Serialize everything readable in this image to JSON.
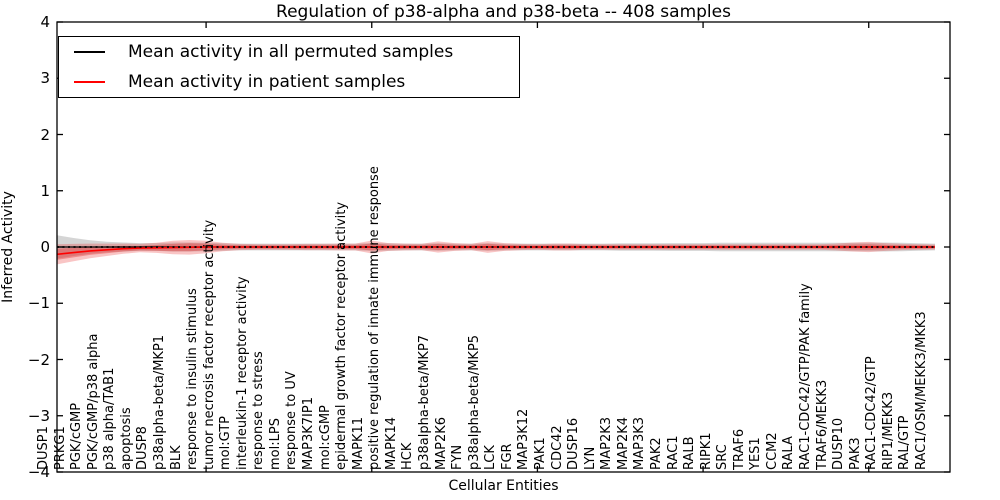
{
  "title": "Regulation of p38-alpha and p38-beta -- 408 samples",
  "legend": {
    "items": [
      {
        "label": "Mean activity in all permuted samples",
        "color": "#000000"
      },
      {
        "label": "Mean activity in patient samples",
        "color": "#ff0000"
      }
    ]
  },
  "chart_data": {
    "type": "line",
    "title": "Regulation of p38-alpha and p38-beta -- 408 samples",
    "xlabel": "Cellular Entities",
    "ylabel": "Inferred Activity",
    "ylim": [
      -4,
      4
    ],
    "yticks": [
      4,
      3,
      2,
      1,
      0,
      -1,
      -2,
      -3,
      -4
    ],
    "xtick_mark_values": [
      10,
      20,
      30,
      40,
      50
    ],
    "grid": false,
    "legend_position": "upper left",
    "categories": [
      "DUSP1",
      "PRKG1",
      "PGK/cGMP",
      "PGK/cGMP/p38 alpha",
      "p38 alpha/TAB1",
      "apoptosis",
      "DUSP8",
      "p38alpha-beta/MKP1",
      "BLK",
      "response to insulin stimulus",
      "tumor necrosis factor receptor activity",
      "mol:GTP",
      "interleukin-1 receptor activity",
      "response to stress",
      "mol:LPS",
      "response to UV",
      "MAP3K7IP1",
      "mol:cGMP",
      "epidermal growth factor receptor activity",
      "MAPK11",
      "positive regulation of innate immune response",
      "MAPK14",
      "HCK",
      "p38alpha-beta/MKP7",
      "MAP2K6",
      "FYN",
      "p38alpha-beta/MKP5",
      "LCK",
      "FGR",
      "MAP3K12",
      "PAK1",
      "CDC42",
      "DUSP16",
      "LYN",
      "MAP2K3",
      "MAP2K4",
      "MAP3K3",
      "PAK2",
      "RAC1",
      "RALB",
      "RIPK1",
      "SRC",
      "TRAF6",
      "YES1",
      "CCM2",
      "RALA",
      "RAC1-CDC42/GTP/PAK family",
      "TRAF6/MEKK3",
      "DUSP10",
      "PAK3",
      "RAC1-CDC42/GTP",
      "RIP1/MEKK3",
      "RAL/GTP",
      "RAC1/OSM/MEKK3/MKK3"
    ],
    "series": [
      {
        "name": "Mean activity in all permuted samples",
        "color": "#000000",
        "style": "solid-with-dotted-overlay",
        "values": [
          0,
          0,
          0,
          0,
          0,
          0,
          0,
          0,
          0,
          0,
          0,
          0,
          0,
          0,
          0,
          0,
          0,
          0,
          0,
          0,
          0,
          0,
          0,
          0,
          0,
          0,
          0,
          0,
          0,
          0,
          0,
          0,
          0,
          0,
          0,
          0,
          0,
          0,
          0,
          0,
          0,
          0,
          0,
          0,
          0,
          0,
          0,
          0,
          0,
          0,
          0,
          0,
          0,
          0
        ]
      },
      {
        "name": "Mean activity in patient samples",
        "color": "#ff0000",
        "style": "solid",
        "values": [
          -0.13,
          -0.1,
          -0.07,
          -0.05,
          -0.03,
          -0.02,
          -0.015,
          -0.01,
          -0.005,
          0,
          0,
          0,
          0,
          0,
          0,
          0,
          0,
          0,
          0,
          0,
          0,
          0,
          0,
          0,
          0,
          0,
          0,
          0,
          0,
          0,
          0,
          0,
          0,
          0,
          0,
          0,
          0,
          0,
          0,
          0,
          0,
          0,
          0,
          0,
          0,
          0,
          0,
          0,
          0,
          0,
          0,
          0,
          0,
          0
        ]
      }
    ],
    "bands": [
      {
        "name": "permuted-samples-spread",
        "center": "permuted",
        "color": "#888888",
        "opacity": 0.35,
        "half_widths": [
          0.21,
          0.16,
          0.12,
          0.095,
          0.08,
          0.07,
          0.07,
          0.08,
          0.08,
          0.075,
          0.065,
          0.06,
          0.06,
          0.06,
          0.06,
          0.06,
          0.06,
          0.06,
          0.06,
          0.07,
          0.065,
          0.06,
          0.06,
          0.065,
          0.06,
          0.06,
          0.065,
          0.06,
          0.06,
          0.06,
          0.06,
          0.06,
          0.06,
          0.06,
          0.065,
          0.065,
          0.065,
          0.07,
          0.07,
          0.07,
          0.075,
          0.075,
          0.075,
          0.075,
          0.075,
          0.075,
          0.075,
          0.075,
          0.075,
          0.075,
          0.08,
          0.075,
          0.065,
          0.06
        ]
      },
      {
        "name": "patient-samples-spread-outer",
        "center": "patient",
        "color": "#e83030",
        "opacity": 0.28,
        "half_widths": [
          0.18,
          0.155,
          0.13,
          0.11,
          0.09,
          0.075,
          0.09,
          0.12,
          0.13,
          0.11,
          0.075,
          0.055,
          0.05,
          0.05,
          0.05,
          0.055,
          0.055,
          0.06,
          0.06,
          0.115,
          0.07,
          0.06,
          0.055,
          0.1,
          0.07,
          0.055,
          0.105,
          0.07,
          0.055,
          0.05,
          0.06,
          0.06,
          0.05,
          0.05,
          0.05,
          0.05,
          0.05,
          0.05,
          0.05,
          0.05,
          0.05,
          0.05,
          0.05,
          0.05,
          0.05,
          0.05,
          0.05,
          0.06,
          0.08,
          0.09,
          0.07,
          0.055,
          0.05,
          0.045
        ]
      },
      {
        "name": "patient-samples-spread-inner",
        "center": "patient",
        "color": "#e02020",
        "opacity": 0.35,
        "half_widths": [
          0.1,
          0.085,
          0.07,
          0.06,
          0.05,
          0.04,
          0.05,
          0.065,
          0.07,
          0.06,
          0.04,
          0.03,
          0.028,
          0.028,
          0.028,
          0.03,
          0.03,
          0.033,
          0.033,
          0.063,
          0.038,
          0.033,
          0.03,
          0.055,
          0.038,
          0.03,
          0.058,
          0.038,
          0.03,
          0.028,
          0.033,
          0.033,
          0.028,
          0.028,
          0.028,
          0.028,
          0.028,
          0.028,
          0.028,
          0.028,
          0.028,
          0.028,
          0.028,
          0.028,
          0.028,
          0.028,
          0.028,
          0.033,
          0.044,
          0.05,
          0.038,
          0.03,
          0.028,
          0.025
        ]
      }
    ]
  }
}
